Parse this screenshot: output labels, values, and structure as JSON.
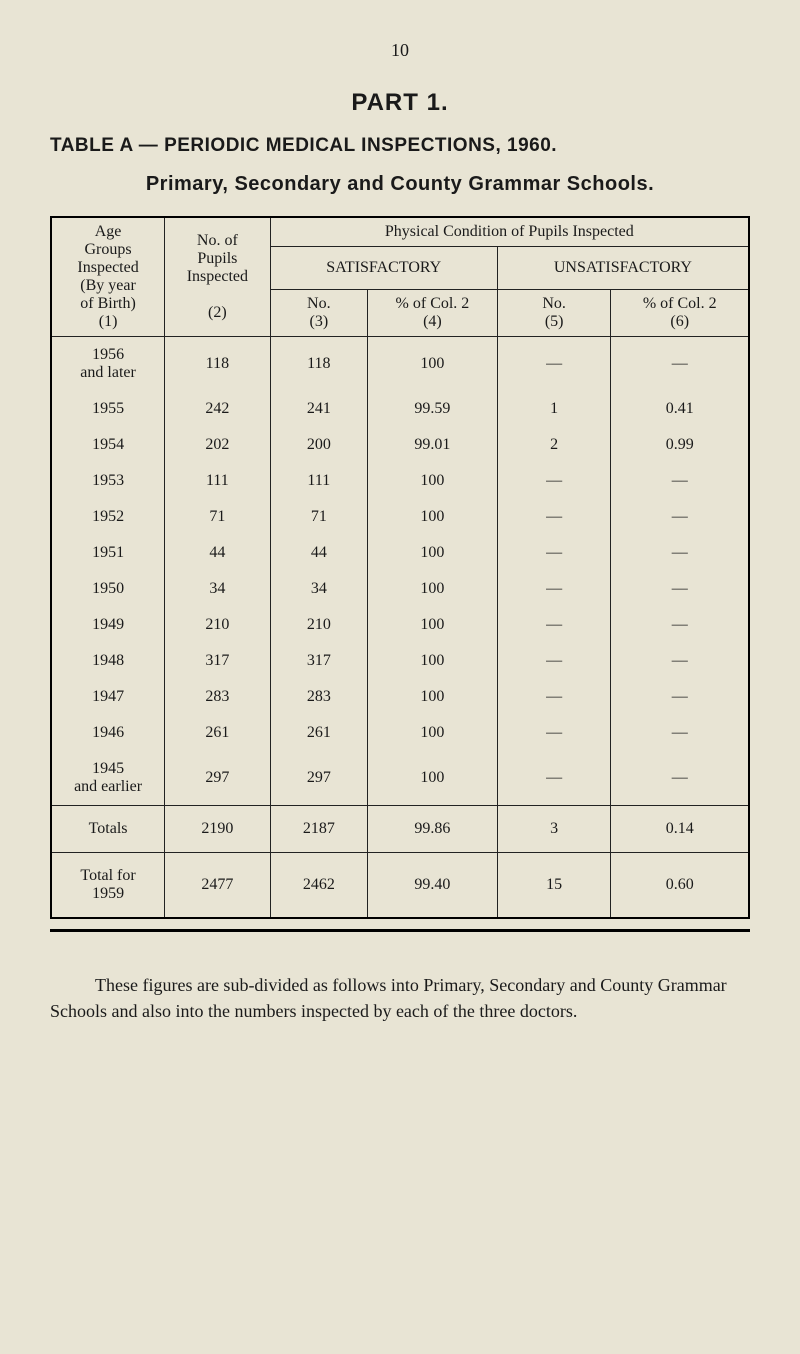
{
  "page": {
    "number": "10",
    "part": "PART 1.",
    "table_title": "TABLE A — PERIODIC MEDICAL INSPECTIONS, 1960.",
    "subtitle": "Primary, Secondary and County Grammar Schools."
  },
  "headers": {
    "col1_l1": "Age",
    "col1_l2": "Groups",
    "col1_l3": "Inspected",
    "col1_l4": "(By year",
    "col1_l5": "of Birth)",
    "col1_l6": "(1)",
    "col2_l1": "No. of",
    "col2_l2": "Pupils",
    "col2_l3": "Inspected",
    "col2_l4": "(2)",
    "phys": "Physical Condition of Pupils Inspected",
    "sat": "SATISFACTORY",
    "unsat": "UNSATISFACTORY",
    "c3a": "No.",
    "c3b": "(3)",
    "c4a": "% of Col. 2",
    "c4b": "(4)",
    "c5a": "No.",
    "c5b": "(5)",
    "c6a": "% of Col. 2",
    "c6b": "(6)"
  },
  "rows": [
    {
      "age": "1956\nand later",
      "pupils": "118",
      "sat_no": "118",
      "sat_pct": "100",
      "un_no": "—",
      "un_pct": "—"
    },
    {
      "age": "1955",
      "pupils": "242",
      "sat_no": "241",
      "sat_pct": "99.59",
      "un_no": "1",
      "un_pct": "0.41"
    },
    {
      "age": "1954",
      "pupils": "202",
      "sat_no": "200",
      "sat_pct": "99.01",
      "un_no": "2",
      "un_pct": "0.99"
    },
    {
      "age": "1953",
      "pupils": "111",
      "sat_no": "111",
      "sat_pct": "100",
      "un_no": "—",
      "un_pct": "—"
    },
    {
      "age": "1952",
      "pupils": "71",
      "sat_no": "71",
      "sat_pct": "100",
      "un_no": "—",
      "un_pct": "—"
    },
    {
      "age": "1951",
      "pupils": "44",
      "sat_no": "44",
      "sat_pct": "100",
      "un_no": "—",
      "un_pct": "—"
    },
    {
      "age": "1950",
      "pupils": "34",
      "sat_no": "34",
      "sat_pct": "100",
      "un_no": "—",
      "un_pct": "—"
    },
    {
      "age": "1949",
      "pupils": "210",
      "sat_no": "210",
      "sat_pct": "100",
      "un_no": "—",
      "un_pct": "—"
    },
    {
      "age": "1948",
      "pupils": "317",
      "sat_no": "317",
      "sat_pct": "100",
      "un_no": "—",
      "un_pct": "—"
    },
    {
      "age": "1947",
      "pupils": "283",
      "sat_no": "283",
      "sat_pct": "100",
      "un_no": "—",
      "un_pct": "—"
    },
    {
      "age": "1946",
      "pupils": "261",
      "sat_no": "261",
      "sat_pct": "100",
      "un_no": "—",
      "un_pct": "—"
    },
    {
      "age": "1945\nand earlier",
      "pupils": "297",
      "sat_no": "297",
      "sat_pct": "100",
      "un_no": "—",
      "un_pct": "—"
    }
  ],
  "totals": {
    "label": "Totals",
    "pupils": "2190",
    "sat_no": "2187",
    "sat_pct": "99.86",
    "un_no": "3",
    "un_pct": "0.14"
  },
  "total1959": {
    "label": "Total for\n1959",
    "pupils": "2477",
    "sat_no": "2462",
    "sat_pct": "99.40",
    "un_no": "15",
    "un_pct": "0.60"
  },
  "footnote": "These figures are sub-divided as follows into Primary, Secondary and County Grammar Schools and also into the numbers inspected by each of the three doctors."
}
